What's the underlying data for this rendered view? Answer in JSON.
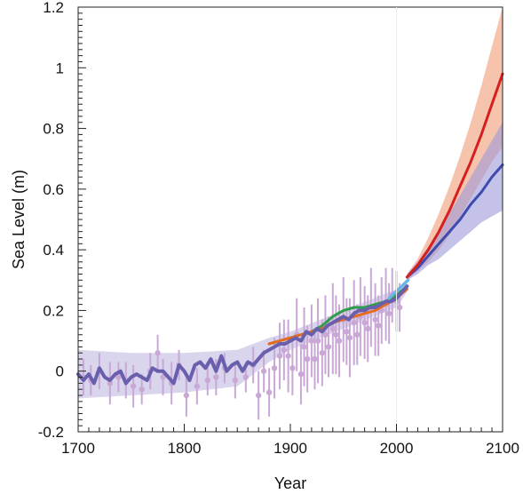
{
  "chart_data": {
    "type": "line",
    "title": "",
    "xlabel": "Year",
    "ylabel": "Sea Level (m)",
    "xlim": [
      1700,
      2100
    ],
    "ylim": [
      -0.2,
      1.2
    ],
    "x_ticks": [
      1700,
      1800,
      1900,
      2000,
      2100
    ],
    "x_tick_labels": [
      "1700",
      "1800",
      "1900",
      "2000",
      "2100"
    ],
    "y_ticks": [
      -0.2,
      0,
      0.2,
      0.4,
      0.6,
      0.8,
      1,
      1.2
    ],
    "y_tick_labels": [
      "-0.2",
      "0",
      "0.2",
      "0.4",
      "0.6",
      "0.8",
      "1",
      "1.2"
    ],
    "grid": false,
    "colors": {
      "paleo_points": "#c9a8d6",
      "paleo_band": "#c7c3e6",
      "reconstruction": "#6a5fad",
      "tide_gauge_orange": "#e66b1f",
      "tide_gauge_green": "#2e9e4a",
      "satellite": "#6ab4e6",
      "high_scenario": "#d62020",
      "high_band": "#f2a98a",
      "low_scenario": "#3d4bb0",
      "low_band": "#9c9ad8"
    },
    "series": [
      {
        "key": "reconstruction",
        "x": [
          1700,
          1705,
          1710,
          1715,
          1720,
          1725,
          1730,
          1735,
          1740,
          1745,
          1750,
          1755,
          1760,
          1765,
          1770,
          1775,
          1780,
          1785,
          1790,
          1795,
          1800,
          1805,
          1810,
          1815,
          1820,
          1825,
          1830,
          1835,
          1840,
          1845,
          1850,
          1855,
          1860,
          1865,
          1870,
          1875,
          1880,
          1885,
          1890,
          1895,
          1900,
          1905,
          1910,
          1915,
          1920,
          1925,
          1930,
          1935,
          1940,
          1945,
          1950,
          1955,
          1960,
          1965,
          1970,
          1975,
          1980,
          1985,
          1990,
          1995,
          2000,
          2005,
          2010
        ],
        "y": [
          -0.01,
          -0.03,
          -0.01,
          -0.04,
          0.01,
          -0.02,
          -0.03,
          -0.01,
          0.0,
          -0.04,
          -0.02,
          -0.01,
          -0.02,
          -0.03,
          0.01,
          0.0,
          0.0,
          -0.02,
          -0.04,
          0.02,
          0.0,
          -0.03,
          0.02,
          0.03,
          0.01,
          0.04,
          0.0,
          0.05,
          0.0,
          0.02,
          0.03,
          0.0,
          0.03,
          0.02,
          0.04,
          0.06,
          0.07,
          0.08,
          0.09,
          0.09,
          0.1,
          0.11,
          0.1,
          0.13,
          0.12,
          0.14,
          0.13,
          0.15,
          0.16,
          0.17,
          0.18,
          0.17,
          0.19,
          0.2,
          0.2,
          0.21,
          0.21,
          0.22,
          0.23,
          0.23,
          0.24,
          0.26,
          0.28
        ]
      },
      {
        "key": "tide_gauge_orange",
        "x": [
          1880,
          1890,
          1900,
          1910,
          1920,
          1930,
          1940,
          1950,
          1960,
          1970,
          1980,
          1990,
          2000,
          2010
        ],
        "y": [
          0.09,
          0.1,
          0.11,
          0.12,
          0.13,
          0.14,
          0.16,
          0.17,
          0.18,
          0.19,
          0.2,
          0.22,
          0.24,
          0.27
        ]
      },
      {
        "key": "tide_gauge_green",
        "x": [
          1880,
          1890,
          1900,
          1910,
          1920,
          1930,
          1940,
          1950,
          1960,
          1970,
          1980,
          1990,
          2000,
          2010
        ],
        "y": [
          0.09,
          0.1,
          0.11,
          0.12,
          0.13,
          0.15,
          0.18,
          0.2,
          0.21,
          0.21,
          0.22,
          0.23,
          0.25,
          0.28
        ]
      },
      {
        "key": "satellite",
        "x": [
          1993,
          1996,
          1999,
          2002,
          2005,
          2008,
          2011
        ],
        "y": [
          0.24,
          0.25,
          0.26,
          0.27,
          0.28,
          0.29,
          0.3
        ]
      },
      {
        "key": "high_scenario",
        "x": [
          2010,
          2020,
          2030,
          2040,
          2050,
          2060,
          2070,
          2080,
          2090,
          2100
        ],
        "y": [
          0.31,
          0.35,
          0.4,
          0.46,
          0.53,
          0.61,
          0.69,
          0.78,
          0.88,
          0.98
        ],
        "band_low": [
          0.3,
          0.33,
          0.36,
          0.4,
          0.45,
          0.51,
          0.57,
          0.63,
          0.69,
          0.74
        ],
        "band_high": [
          0.32,
          0.37,
          0.44,
          0.52,
          0.61,
          0.71,
          0.82,
          0.94,
          1.07,
          1.2
        ]
      },
      {
        "key": "low_scenario",
        "x": [
          2010,
          2020,
          2030,
          2040,
          2050,
          2060,
          2070,
          2080,
          2090,
          2100
        ],
        "y": [
          0.31,
          0.34,
          0.38,
          0.42,
          0.46,
          0.5,
          0.55,
          0.59,
          0.64,
          0.68
        ],
        "band_low": [
          0.3,
          0.32,
          0.35,
          0.37,
          0.4,
          0.43,
          0.46,
          0.49,
          0.51,
          0.53
        ],
        "band_high": [
          0.32,
          0.36,
          0.41,
          0.46,
          0.52,
          0.58,
          0.64,
          0.7,
          0.76,
          0.82
        ]
      }
    ],
    "paleo_points": {
      "x": [
        1705,
        1712,
        1720,
        1730,
        1738,
        1745,
        1752,
        1760,
        1768,
        1775,
        1780,
        1788,
        1795,
        1802,
        1812,
        1822,
        1830,
        1838,
        1848,
        1858,
        1865,
        1870,
        1875,
        1880,
        1885,
        1890,
        1894,
        1898,
        1902,
        1906,
        1910,
        1913,
        1916,
        1920,
        1923,
        1926,
        1930,
        1933,
        1936,
        1940,
        1943,
        1946,
        1950,
        1953,
        1956,
        1960,
        1963,
        1966,
        1970,
        1973,
        1976,
        1980,
        1983,
        1986,
        1990,
        1993,
        1996,
        2000,
        2003
      ],
      "y": [
        -0.02,
        -0.03,
        0.0,
        -0.04,
        -0.02,
        -0.03,
        -0.05,
        -0.06,
        0.0,
        0.06,
        -0.02,
        -0.04,
        0.02,
        -0.08,
        -0.05,
        -0.03,
        -0.02,
        0.01,
        -0.03,
        -0.02,
        0.02,
        -0.08,
        0.0,
        -0.07,
        0.01,
        0.05,
        0.07,
        0.05,
        0.01,
        0.12,
        -0.01,
        0.08,
        0.04,
        0.1,
        0.04,
        0.1,
        0.06,
        0.12,
        0.08,
        0.14,
        0.12,
        0.1,
        0.17,
        0.13,
        0.11,
        0.16,
        0.12,
        0.18,
        0.16,
        0.14,
        0.21,
        0.17,
        0.15,
        0.2,
        0.22,
        0.19,
        0.25,
        0.23,
        0.21
      ],
      "err": [
        0.06,
        0.05,
        0.06,
        0.07,
        0.05,
        0.06,
        0.07,
        0.05,
        0.06,
        0.06,
        0.06,
        0.07,
        0.05,
        0.07,
        0.06,
        0.05,
        0.06,
        0.05,
        0.06,
        0.05,
        0.06,
        0.08,
        0.07,
        0.08,
        0.1,
        0.11,
        0.1,
        0.12,
        0.09,
        0.12,
        0.1,
        0.13,
        0.11,
        0.12,
        0.1,
        0.14,
        0.11,
        0.13,
        0.1,
        0.15,
        0.13,
        0.12,
        0.14,
        0.11,
        0.13,
        0.14,
        0.1,
        0.13,
        0.12,
        0.11,
        0.13,
        0.12,
        0.1,
        0.11,
        0.12,
        0.1,
        0.09,
        0.1,
        0.08
      ]
    },
    "reconstruction_band": {
      "x": [
        1700,
        1750,
        1800,
        1850,
        1880,
        1900,
        1950,
        2000,
        2010
      ],
      "low": [
        -0.09,
        -0.08,
        -0.07,
        -0.05,
        0.03,
        0.07,
        0.14,
        0.21,
        0.26
      ],
      "high": [
        0.07,
        0.06,
        0.06,
        0.07,
        0.11,
        0.13,
        0.2,
        0.27,
        0.3
      ]
    },
    "vertical_marker_x": 2000
  }
}
